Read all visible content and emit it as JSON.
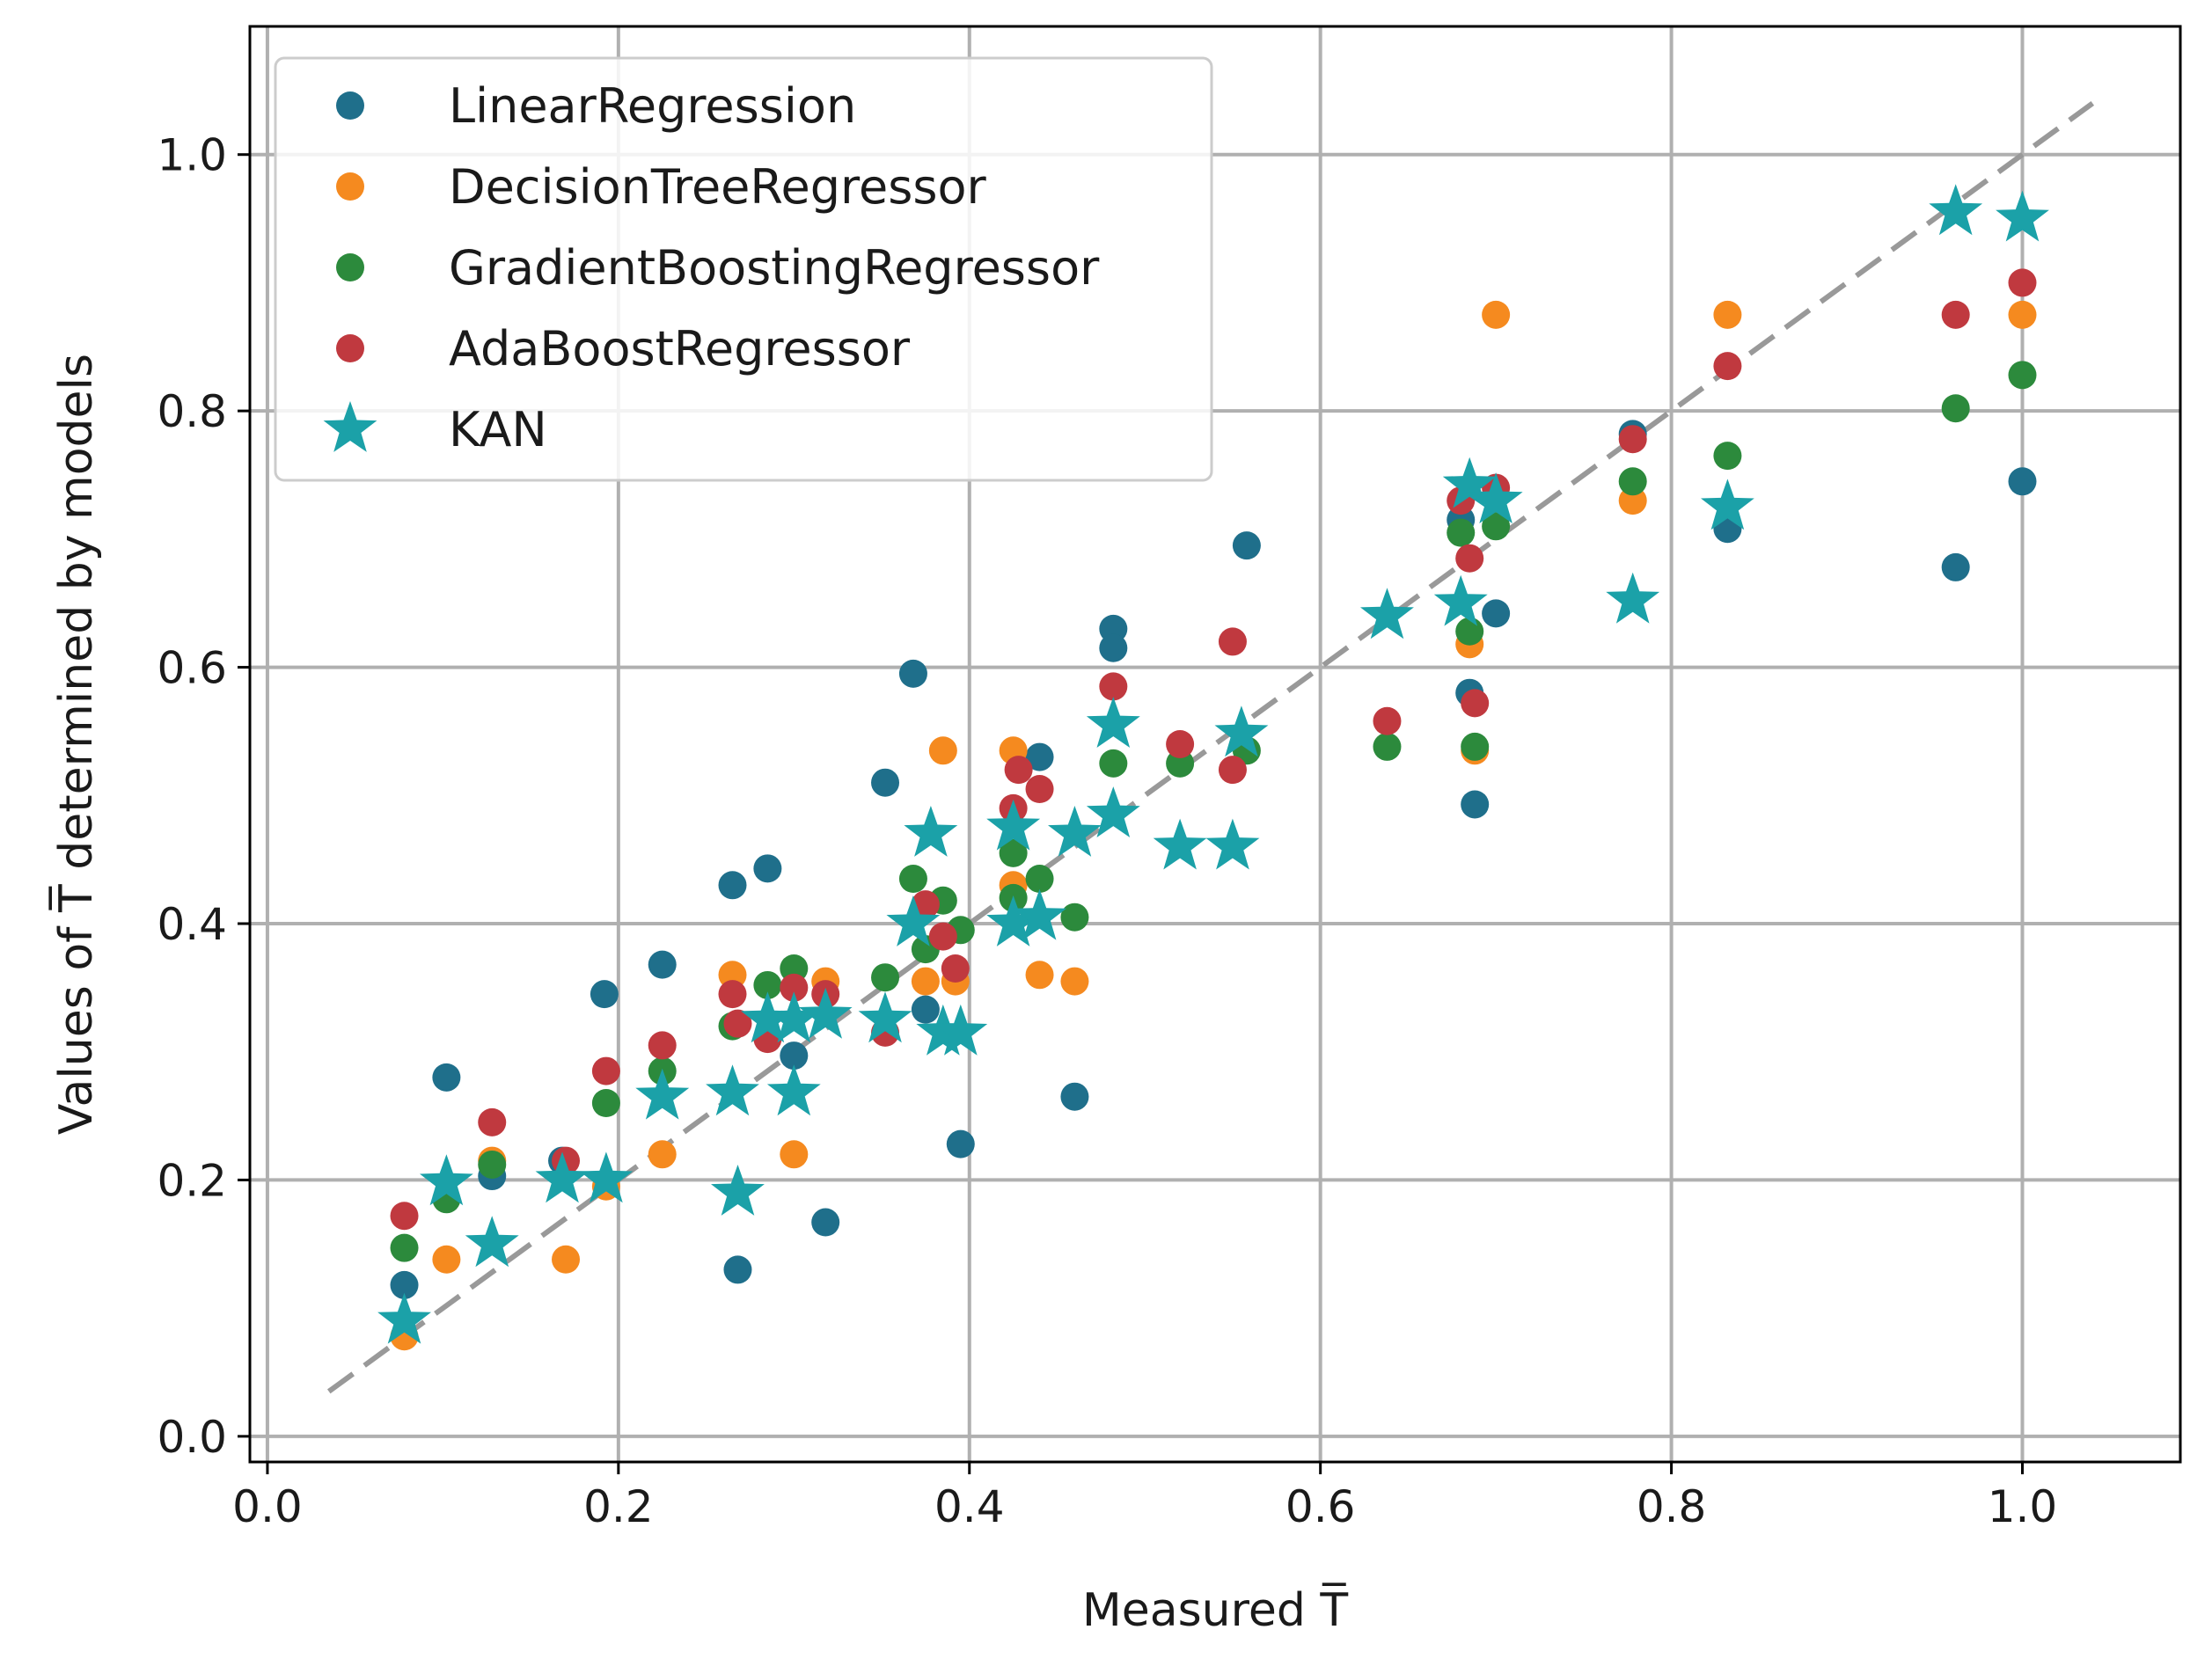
{
  "chart_data": {
    "type": "scatter",
    "title": "",
    "xlabel": "Measured T̅",
    "ylabel": "Values of T̅ determined by models",
    "xlim": [
      -0.01,
      1.09
    ],
    "ylim": [
      -0.02,
      1.1
    ],
    "xticks": [
      0.0,
      0.2,
      0.4,
      0.6,
      0.8,
      1.0
    ],
    "yticks": [
      0.0,
      0.2,
      0.4,
      0.6,
      0.8,
      1.0
    ],
    "xtick_labels": [
      "0.0",
      "0.2",
      "0.4",
      "0.6",
      "0.8",
      "1.0"
    ],
    "ytick_labels": [
      "0.0",
      "0.2",
      "0.4",
      "0.6",
      "0.8",
      "1.0"
    ],
    "grid": true,
    "legend_position": "top-left",
    "reference_line": {
      "style": "dashed",
      "color": "#999999",
      "x": [
        0.035,
        1.04
      ],
      "y": [
        0.035,
        1.04
      ]
    },
    "series": [
      {
        "name": "LinearRegression",
        "marker": "circle",
        "color": "#1f6f8b",
        "points": [
          [
            0.078,
            0.118
          ],
          [
            0.102,
            0.28
          ],
          [
            0.128,
            0.203
          ],
          [
            0.168,
            0.215
          ],
          [
            0.192,
            0.345
          ],
          [
            0.225,
            0.368
          ],
          [
            0.265,
            0.43
          ],
          [
            0.268,
            0.13
          ],
          [
            0.285,
            0.443
          ],
          [
            0.3,
            0.297
          ],
          [
            0.318,
            0.167
          ],
          [
            0.352,
            0.51
          ],
          [
            0.368,
            0.595
          ],
          [
            0.375,
            0.333
          ],
          [
            0.395,
            0.228
          ],
          [
            0.44,
            0.53
          ],
          [
            0.46,
            0.265
          ],
          [
            0.482,
            0.63
          ],
          [
            0.482,
            0.615
          ],
          [
            0.558,
            0.695
          ],
          [
            0.68,
            0.715
          ],
          [
            0.685,
            0.58
          ],
          [
            0.688,
            0.493
          ],
          [
            0.7,
            0.642
          ],
          [
            0.778,
            0.782
          ],
          [
            0.832,
            0.708
          ],
          [
            0.962,
            0.678
          ],
          [
            1.0,
            0.745
          ]
        ]
      },
      {
        "name": "DecisionTreeRegressor",
        "marker": "circle",
        "color": "#f58a1f",
        "points": [
          [
            0.078,
            0.078
          ],
          [
            0.102,
            0.138
          ],
          [
            0.128,
            0.215
          ],
          [
            0.17,
            0.138
          ],
          [
            0.193,
            0.195
          ],
          [
            0.225,
            0.22
          ],
          [
            0.265,
            0.36
          ],
          [
            0.3,
            0.22
          ],
          [
            0.318,
            0.355
          ],
          [
            0.375,
            0.355
          ],
          [
            0.385,
            0.535
          ],
          [
            0.392,
            0.355
          ],
          [
            0.425,
            0.535
          ],
          [
            0.425,
            0.43
          ],
          [
            0.44,
            0.36
          ],
          [
            0.46,
            0.355
          ],
          [
            0.685,
            0.618
          ],
          [
            0.688,
            0.535
          ],
          [
            0.7,
            0.875
          ],
          [
            0.778,
            0.73
          ],
          [
            0.832,
            0.875
          ],
          [
            1.0,
            0.875
          ]
        ]
      },
      {
        "name": "GradientBoostingRegressor",
        "marker": "circle",
        "color": "#2c8a3c",
        "points": [
          [
            0.078,
            0.147
          ],
          [
            0.102,
            0.185
          ],
          [
            0.128,
            0.212
          ],
          [
            0.193,
            0.26
          ],
          [
            0.225,
            0.285
          ],
          [
            0.265,
            0.32
          ],
          [
            0.285,
            0.352
          ],
          [
            0.3,
            0.365
          ],
          [
            0.352,
            0.358
          ],
          [
            0.368,
            0.435
          ],
          [
            0.375,
            0.38
          ],
          [
            0.385,
            0.418
          ],
          [
            0.395,
            0.395
          ],
          [
            0.425,
            0.455
          ],
          [
            0.425,
            0.42
          ],
          [
            0.44,
            0.435
          ],
          [
            0.46,
            0.405
          ],
          [
            0.482,
            0.525
          ],
          [
            0.52,
            0.525
          ],
          [
            0.558,
            0.535
          ],
          [
            0.638,
            0.538
          ],
          [
            0.68,
            0.705
          ],
          [
            0.685,
            0.628
          ],
          [
            0.688,
            0.538
          ],
          [
            0.7,
            0.71
          ],
          [
            0.778,
            0.745
          ],
          [
            0.832,
            0.765
          ],
          [
            0.962,
            0.802
          ],
          [
            1.0,
            0.828
          ]
        ]
      },
      {
        "name": "AdaBoostRegressor",
        "marker": "circle",
        "color": "#c0393f",
        "points": [
          [
            0.078,
            0.172
          ],
          [
            0.128,
            0.245
          ],
          [
            0.17,
            0.215
          ],
          [
            0.193,
            0.285
          ],
          [
            0.225,
            0.305
          ],
          [
            0.265,
            0.345
          ],
          [
            0.268,
            0.322
          ],
          [
            0.285,
            0.31
          ],
          [
            0.3,
            0.35
          ],
          [
            0.318,
            0.345
          ],
          [
            0.352,
            0.315
          ],
          [
            0.375,
            0.415
          ],
          [
            0.385,
            0.39
          ],
          [
            0.392,
            0.365
          ],
          [
            0.425,
            0.49
          ],
          [
            0.428,
            0.52
          ],
          [
            0.44,
            0.505
          ],
          [
            0.482,
            0.585
          ],
          [
            0.52,
            0.54
          ],
          [
            0.55,
            0.62
          ],
          [
            0.55,
            0.52
          ],
          [
            0.638,
            0.558
          ],
          [
            0.68,
            0.73
          ],
          [
            0.685,
            0.685
          ],
          [
            0.688,
            0.572
          ],
          [
            0.7,
            0.74
          ],
          [
            0.778,
            0.778
          ],
          [
            0.832,
            0.835
          ],
          [
            0.962,
            0.875
          ],
          [
            1.0,
            0.9
          ]
        ]
      },
      {
        "name": "KAN",
        "marker": "star",
        "color": "#1ba1a8",
        "points": [
          [
            0.078,
            0.09
          ],
          [
            0.102,
            0.198
          ],
          [
            0.128,
            0.15
          ],
          [
            0.168,
            0.2
          ],
          [
            0.193,
            0.2
          ],
          [
            0.225,
            0.265
          ],
          [
            0.265,
            0.268
          ],
          [
            0.268,
            0.19
          ],
          [
            0.285,
            0.325
          ],
          [
            0.3,
            0.325
          ],
          [
            0.3,
            0.268
          ],
          [
            0.318,
            0.328
          ],
          [
            0.352,
            0.325
          ],
          [
            0.368,
            0.4
          ],
          [
            0.378,
            0.47
          ],
          [
            0.385,
            0.315
          ],
          [
            0.395,
            0.315
          ],
          [
            0.425,
            0.475
          ],
          [
            0.425,
            0.4
          ],
          [
            0.44,
            0.405
          ],
          [
            0.46,
            0.47
          ],
          [
            0.482,
            0.555
          ],
          [
            0.482,
            0.485
          ],
          [
            0.52,
            0.46
          ],
          [
            0.55,
            0.46
          ],
          [
            0.555,
            0.548
          ],
          [
            0.638,
            0.64
          ],
          [
            0.68,
            0.65
          ],
          [
            0.685,
            0.742
          ],
          [
            0.7,
            0.73
          ],
          [
            0.778,
            0.652
          ],
          [
            0.832,
            0.725
          ],
          [
            0.962,
            0.955
          ],
          [
            1.0,
            0.95
          ]
        ]
      }
    ]
  }
}
